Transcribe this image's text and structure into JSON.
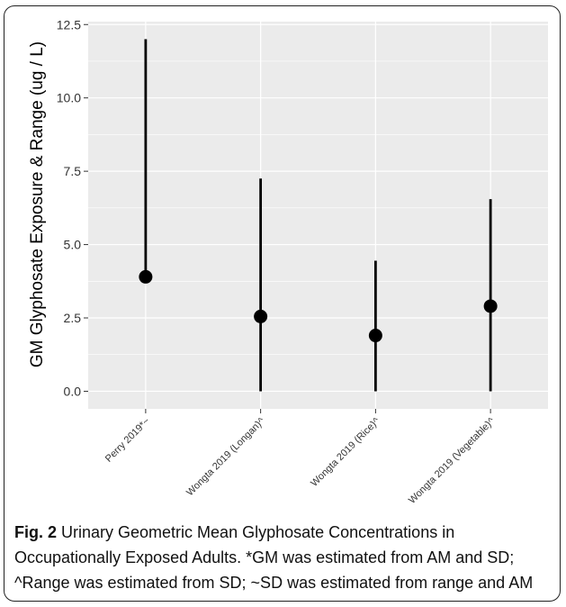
{
  "caption": {
    "label": "Fig. 2",
    "text": " Urinary Geometric Mean Glyphosate Concentrations in Occupationally Exposed Adults. *GM was estimated from AM and SD; ^Range was estimated from SD; ~SD was estimated from range and AM"
  },
  "chart_data": {
    "type": "scatter",
    "title": "",
    "xlabel": "",
    "ylabel": "GM Glyphosate Exposure & Range (ug / L)",
    "ylim": [
      -0.6,
      12.6
    ],
    "yticks": [
      0.0,
      2.5,
      5.0,
      7.5,
      10.0,
      12.5
    ],
    "ytick_labels": [
      "0.0",
      "2.5",
      "5.0",
      "7.5",
      "10.0",
      "12.5"
    ],
    "categories": [
      "Perry 2019*~",
      "Wongta 2019 (Longan)^",
      "Wongta 2019 (Rice)^",
      "Wongta 2019 (Vegetable)^"
    ],
    "gm": [
      3.9,
      2.55,
      1.9,
      2.9
    ],
    "range_low": [
      3.9,
      0.0,
      0.0,
      0.0
    ],
    "range_high": [
      12.0,
      7.25,
      4.45,
      6.55
    ],
    "grid": true,
    "panel_background": "#ebebeb",
    "grid_color": "#ffffff",
    "mark_color": "#000000"
  }
}
